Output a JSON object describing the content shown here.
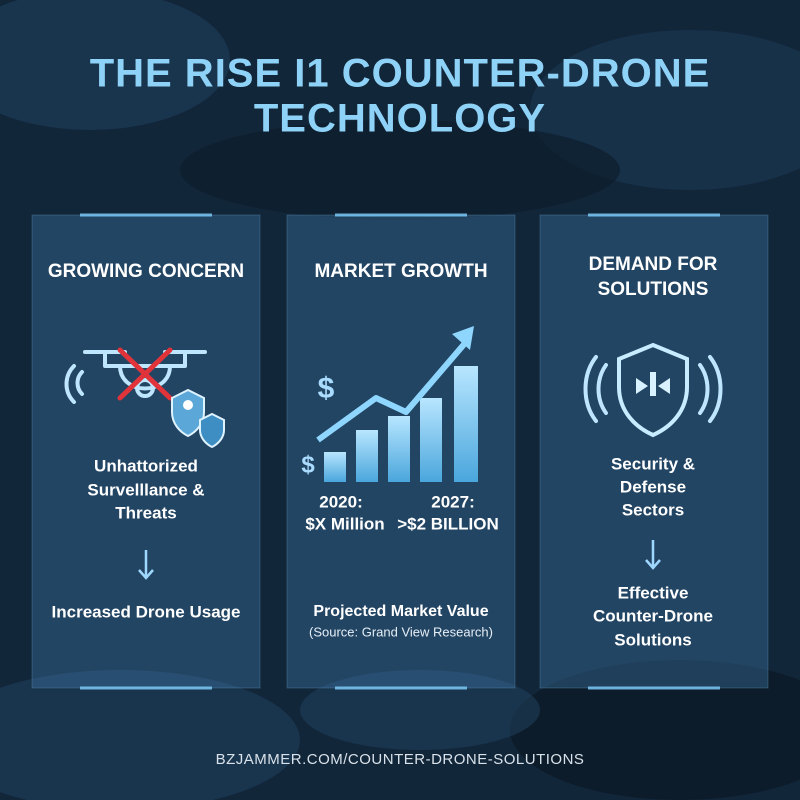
{
  "header": {
    "title_lines": [
      "THE RISE I1 COUNTER-DRONE",
      "TECHNOLOGY"
    ]
  },
  "panels": [
    {
      "heading": [
        "GROWING CONCERN"
      ],
      "body": [
        "Unhattorized",
        "Survelllance &",
        "Threats"
      ],
      "footer": [
        "Increased Drone Usage"
      ]
    },
    {
      "heading": [
        "MARKET GROWTH"
      ],
      "chart_labels": [
        "2020:",
        "$X Million",
        "2027:",
        ">$2 BILLION"
      ],
      "footer": [
        "Projected Market Value"
      ],
      "source": "(Source: Grand View Research)"
    },
    {
      "heading": [
        "DEMAND FOR",
        "SOLUTIONS"
      ],
      "body": [
        "Security &",
        "Defense",
        "Sectors"
      ],
      "footer": [
        "Effective",
        "Counter-Drone",
        "Solutions"
      ]
    }
  ],
  "footer": {
    "url": "BZJAMMER.COM/COUNTER-DRONE-SOLUTIONS"
  }
}
